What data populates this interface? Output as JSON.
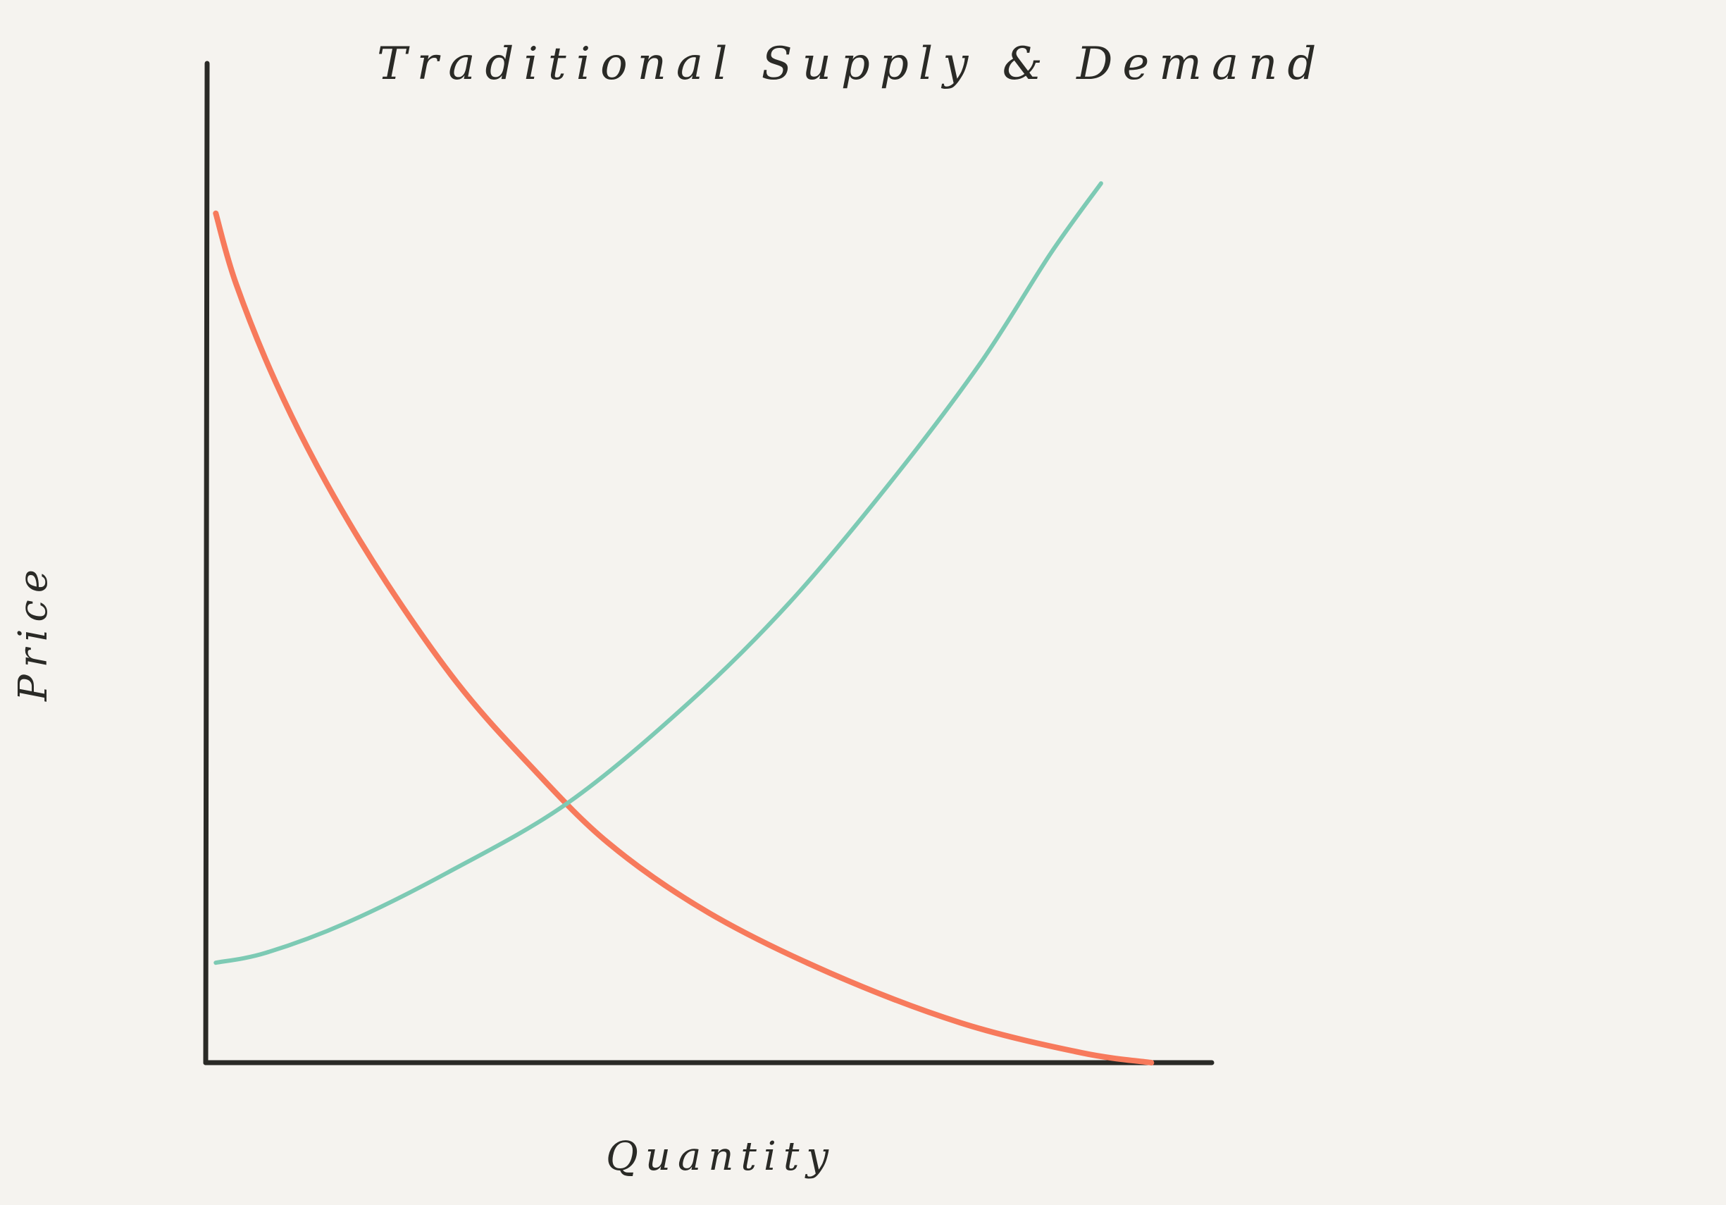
{
  "chart_data": {
    "type": "line",
    "title": "Traditional Supply & Demand",
    "xlabel": "Quantity",
    "ylabel": "Price",
    "xlim": [
      0,
      100
    ],
    "ylim": [
      0,
      100
    ],
    "grid": false,
    "legend": "none",
    "axis_color": "#2a2a26",
    "series": [
      {
        "key": "demand",
        "color": "#f77a5c",
        "points": [
          [
            1,
            85
          ],
          [
            3,
            78
          ],
          [
            7,
            68
          ],
          [
            12,
            58
          ],
          [
            18,
            48
          ],
          [
            25,
            38
          ],
          [
            32,
            30
          ],
          [
            40,
            22
          ],
          [
            50,
            15
          ],
          [
            62,
            9
          ],
          [
            75,
            4
          ],
          [
            87,
            1
          ],
          [
            94,
            0
          ]
        ]
      },
      {
        "key": "supply",
        "color": "#7dcab4",
        "points": [
          [
            1,
            10
          ],
          [
            6,
            11
          ],
          [
            14,
            14
          ],
          [
            24,
            19
          ],
          [
            36,
            26
          ],
          [
            48,
            36
          ],
          [
            58,
            46
          ],
          [
            68,
            58
          ],
          [
            77,
            70
          ],
          [
            84,
            81
          ],
          [
            89,
            88
          ]
        ]
      }
    ]
  }
}
